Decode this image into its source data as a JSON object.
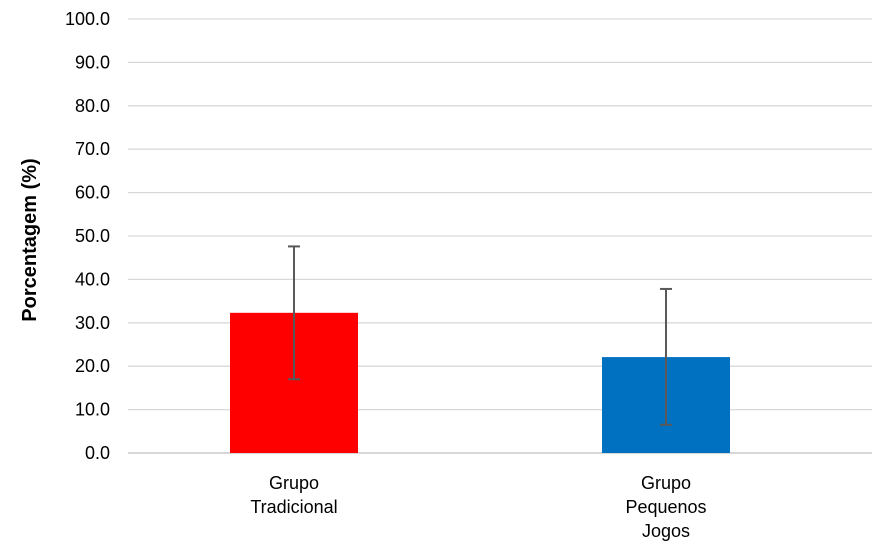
{
  "chart_data": {
    "type": "bar",
    "title": "",
    "xlabel": "",
    "ylabel": "Porcentagem (%)",
    "ylim": [
      0,
      100
    ],
    "yticks": [
      "0.0",
      "10.0",
      "20.0",
      "30.0",
      "40.0",
      "50.0",
      "60.0",
      "70.0",
      "80.0",
      "90.0",
      "100.0"
    ],
    "grid": true,
    "categories": [
      [
        "Grupo",
        "Tradicional"
      ],
      [
        "Grupo",
        "Pequenos",
        "Jogos"
      ]
    ],
    "values": [
      32.3,
      22.1
    ],
    "error_low": [
      17.0,
      6.5
    ],
    "error_high": [
      47.6,
      37.8
    ],
    "colors": [
      "#ff0000",
      "#0070c0"
    ]
  }
}
